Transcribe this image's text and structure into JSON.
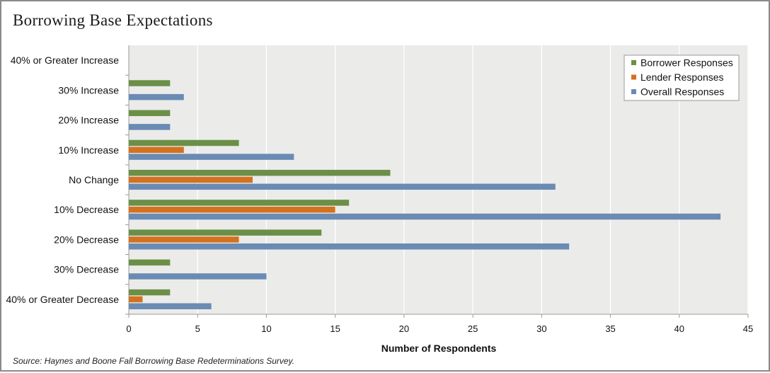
{
  "title": "Borrowing Base Expectations",
  "source": "Source: Haynes and Boone Fall Borrowing Base Redeterminations Survey.",
  "colors": {
    "plot_background": "#ebebea",
    "gridline": "#ffffff",
    "Borrower Responses": "#6b8f47",
    "Lender Responses": "#d4711f",
    "Overall Responses": "#6a8bb3"
  },
  "chart_data": {
    "type": "bar",
    "orientation": "horizontal",
    "categories": [
      "40% or Greater Increase",
      "30% Increase",
      "20% Increase",
      "10% Increase",
      "No Change",
      "10% Decrease",
      "20% Decrease",
      "30% Decrease",
      "40% or Greater Decrease"
    ],
    "series": [
      {
        "name": "Borrower Responses",
        "values": [
          0,
          3,
          3,
          8,
          19,
          16,
          14,
          3,
          3
        ]
      },
      {
        "name": "Lender Responses",
        "values": [
          0,
          0,
          0,
          4,
          9,
          15,
          8,
          0,
          1
        ]
      },
      {
        "name": "Overall Responses",
        "values": [
          0,
          4,
          3,
          12,
          31,
          43,
          32,
          10,
          6
        ]
      }
    ],
    "xlabel": "Number of Respondents",
    "ylabel": "",
    "xlim": [
      0,
      45
    ],
    "xticks": [
      0,
      5,
      10,
      15,
      20,
      25,
      30,
      35,
      40,
      45
    ],
    "grid": true,
    "legend_position": "top-right"
  }
}
